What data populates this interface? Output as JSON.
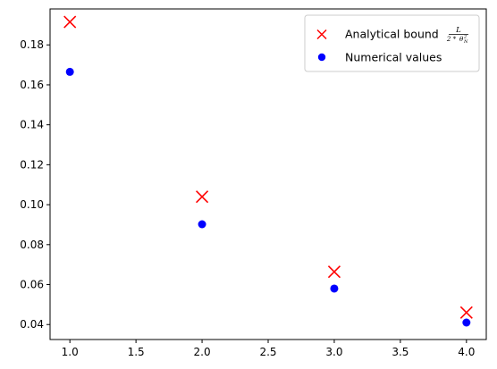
{
  "chart_data": {
    "type": "scatter",
    "title": "",
    "xlabel": "",
    "ylabel": "",
    "xlim": [
      0.85,
      4.15
    ],
    "ylim": [
      0.0325,
      0.198
    ],
    "xticks": [
      "1.0",
      "1.5",
      "2.0",
      "2.5",
      "3.0",
      "3.5",
      "4.0"
    ],
    "yticks": [
      "0.04",
      "0.06",
      "0.08",
      "0.10",
      "0.12",
      "0.14",
      "0.16",
      "0.18"
    ],
    "grid": false,
    "legend_position": "top-right",
    "series": [
      {
        "name": "Analytical bound",
        "name_formula": {
          "numerator": "L",
          "denominator_prefix": "2 * ",
          "denominator_symbol": "θ",
          "superscript": "2",
          "subscript": "N"
        },
        "marker": "x",
        "color": "#ff0000",
        "x": [
          1.0,
          2.0,
          3.0,
          4.0
        ],
        "y": [
          0.1915,
          0.104,
          0.0664,
          0.046
        ]
      },
      {
        "name": "Numerical values",
        "marker": "circle",
        "color": "#0000ff",
        "x": [
          1.0,
          2.0,
          3.0,
          4.0
        ],
        "y": [
          0.1665,
          0.0902,
          0.058,
          0.041
        ]
      }
    ]
  }
}
